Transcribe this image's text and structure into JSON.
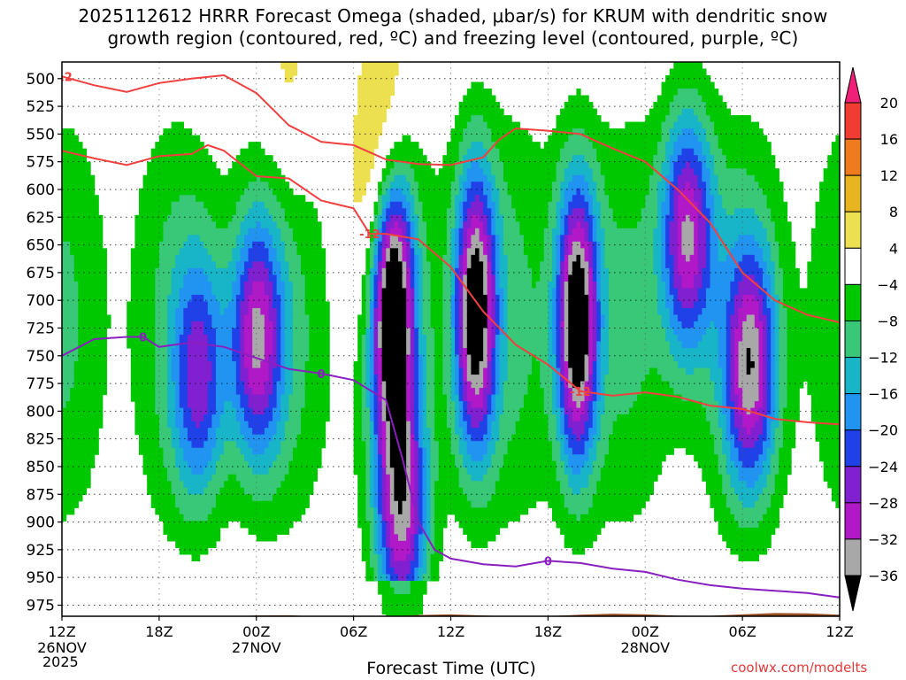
{
  "header": {
    "title_line1": "2025112612 HRRR Forecast Omega (shaded, μbar/s) for KRUM with dendritic snow",
    "title_line2": "growth region (contoured, red, ºC) and freezing level (contoured, purple, ºC)"
  },
  "footer": {
    "xlabel": "Forecast Time (UTC)",
    "credit": "coolwx.com/modelts",
    "year": "2025"
  },
  "chart_data": {
    "type": "heatmap",
    "xlabel": "Forecast Time (UTC)",
    "ylabel": "",
    "x_range_hours": [
      0,
      48
    ],
    "y_range_hPa": [
      485,
      985
    ],
    "x_ticks": [
      {
        "h": 0,
        "label": "12Z",
        "date": "26NOV"
      },
      {
        "h": 6,
        "label": "18Z",
        "date": ""
      },
      {
        "h": 12,
        "label": "00Z",
        "date": "27NOV"
      },
      {
        "h": 18,
        "label": "06Z",
        "date": ""
      },
      {
        "h": 24,
        "label": "12Z",
        "date": ""
      },
      {
        "h": 30,
        "label": "18Z",
        "date": ""
      },
      {
        "h": 36,
        "label": "00Z",
        "date": "28NOV"
      },
      {
        "h": 42,
        "label": "06Z",
        "date": ""
      },
      {
        "h": 48,
        "label": "12Z",
        "date": ""
      }
    ],
    "y_ticks": [
      500,
      525,
      550,
      575,
      600,
      625,
      650,
      675,
      700,
      725,
      750,
      775,
      800,
      825,
      850,
      875,
      900,
      925,
      950,
      975
    ],
    "colorbar": {
      "labels": [
        "20",
        "16",
        "12",
        "8",
        "4",
        "−4",
        "−8",
        "−12",
        "−16",
        "−20",
        "−24",
        "−28",
        "−32",
        "−36"
      ],
      "levels": [
        20,
        16,
        12,
        8,
        4,
        -4,
        -8,
        -12,
        -16,
        -20,
        -24,
        -28,
        -32,
        -36
      ],
      "colors": [
        "#f02078",
        "#f03c32",
        "#f07a1e",
        "#e8b420",
        "#ece050",
        "#ffffff",
        "#00c800",
        "#38c878",
        "#18b4c8",
        "#2094f0",
        "#2040e8",
        "#8020d0",
        "#b018c8",
        "#a8a8a8",
        "#000000"
      ]
    },
    "dendritic_contours": [
      {
        "label": "-12",
        "points": [
          [
            0,
            498
          ],
          [
            2,
            506
          ],
          [
            4,
            512
          ],
          [
            6,
            504
          ],
          [
            8,
            500
          ],
          [
            10,
            497
          ],
          [
            12,
            513
          ],
          [
            14,
            542
          ],
          [
            16,
            557
          ],
          [
            18,
            560
          ],
          [
            20,
            573
          ],
          [
            22,
            577
          ],
          [
            24,
            578
          ],
          [
            26,
            571
          ],
          [
            27,
            555
          ],
          [
            28,
            545
          ],
          [
            30,
            547
          ],
          [
            32,
            550
          ],
          [
            34,
            563
          ],
          [
            36,
            575
          ],
          [
            38,
            600
          ],
          [
            40,
            630
          ],
          [
            42,
            675
          ],
          [
            44,
            700
          ],
          [
            46,
            713
          ],
          [
            48,
            720
          ]
        ]
      },
      {
        "label": "-12",
        "points": [
          [
            0,
            565
          ],
          [
            2,
            572
          ],
          [
            4,
            578
          ],
          [
            6,
            570
          ],
          [
            8,
            568
          ],
          [
            9,
            560
          ],
          [
            10,
            565
          ],
          [
            12,
            588
          ],
          [
            14,
            590
          ],
          [
            16,
            610
          ],
          [
            18,
            617
          ],
          [
            19,
            640
          ],
          [
            20,
            640
          ],
          [
            22,
            645
          ],
          [
            24,
            670
          ],
          [
            26,
            710
          ],
          [
            28,
            740
          ],
          [
            30,
            758
          ],
          [
            32,
            782
          ],
          [
            34,
            786
          ],
          [
            36,
            783
          ],
          [
            38,
            787
          ],
          [
            40,
            795
          ],
          [
            42,
            798
          ],
          [
            44,
            807
          ],
          [
            46,
            810
          ],
          [
            48,
            812
          ]
        ]
      }
    ],
    "freezing_contours": [
      {
        "label": "0",
        "points": [
          [
            0,
            750
          ],
          [
            2,
            735
          ],
          [
            4,
            733
          ],
          [
            5,
            733
          ],
          [
            6,
            742
          ],
          [
            8,
            738
          ],
          [
            10,
            742
          ],
          [
            12,
            752
          ],
          [
            14,
            762
          ],
          [
            16,
            766
          ],
          [
            18,
            772
          ],
          [
            20,
            790
          ],
          [
            21,
            842
          ],
          [
            22,
            900
          ],
          [
            23,
            925
          ],
          [
            24,
            933
          ],
          [
            26,
            938
          ],
          [
            28,
            940
          ],
          [
            30,
            935
          ],
          [
            32,
            937
          ],
          [
            34,
            942
          ],
          [
            36,
            945
          ],
          [
            38,
            952
          ],
          [
            40,
            957
          ],
          [
            42,
            960
          ],
          [
            44,
            962
          ],
          [
            46,
            964
          ],
          [
            48,
            968
          ]
        ]
      }
    ],
    "omega_cores": [
      {
        "t": 20.4,
        "p": 700,
        "v": -40
      },
      {
        "t": 25.5,
        "p": 710,
        "v": -38
      },
      {
        "t": 31.8,
        "p": 720,
        "v": -40
      },
      {
        "t": 38.6,
        "p": 640,
        "v": -30
      },
      {
        "t": 12.0,
        "p": 735,
        "v": -28
      },
      {
        "t": 8.5,
        "p": 770,
        "v": -21
      },
      {
        "t": 21.0,
        "p": 900,
        "v": -28
      },
      {
        "t": 42.5,
        "p": 760,
        "v": -28
      },
      {
        "t": 14.0,
        "p": 520,
        "v": 6
      },
      {
        "t": 20.0,
        "p": 560,
        "v": 14
      },
      {
        "t": 18.5,
        "p": 630,
        "v": 6
      }
    ]
  }
}
